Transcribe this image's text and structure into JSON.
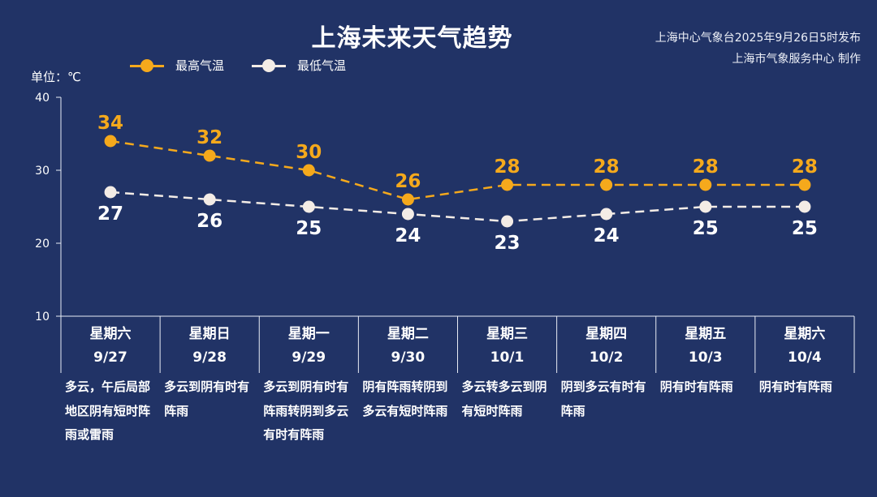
{
  "header": {
    "title": "上海未来天气趋势",
    "source_line1": "上海中心气象台2025年9月26日5时发布",
    "source_line2": "上海市气象服务中心 制作"
  },
  "colors": {
    "background": "#213366",
    "high": "#f5a91c",
    "low": "#ffffff",
    "axis": "#e8ecf5"
  },
  "chart_data": {
    "type": "line",
    "unit_label": "单位：℃",
    "ylim": [
      10,
      40
    ],
    "yticks": [
      "40",
      "30",
      "20",
      "10"
    ],
    "legend_position": "top-left",
    "categories": [
      "9/27",
      "9/28",
      "9/29",
      "9/30",
      "10/1",
      "10/2",
      "10/3",
      "10/4"
    ],
    "weekdays": [
      "星期六",
      "星期日",
      "星期一",
      "星期二",
      "星期三",
      "星期四",
      "星期五",
      "星期六"
    ],
    "series": [
      {
        "name": "最高气温",
        "values": [
          34,
          32,
          30,
          26,
          28,
          28,
          28,
          28
        ]
      },
      {
        "name": "最低气温",
        "values": [
          27,
          26,
          25,
          24,
          23,
          24,
          25,
          25
        ]
      }
    ],
    "weather": [
      "多云，午后局部地区阴有短时阵雨或雷雨",
      "多云到阴有时有阵雨",
      "多云到阴有时有阵雨转阴到多云有时有阵雨",
      "阴有阵雨转阴到多云有短时阵雨",
      "多云转多云到阴有短时阵雨",
      "阴到多云有时有阵雨",
      "阴有时有阵雨",
      "阴有时有阵雨"
    ]
  }
}
